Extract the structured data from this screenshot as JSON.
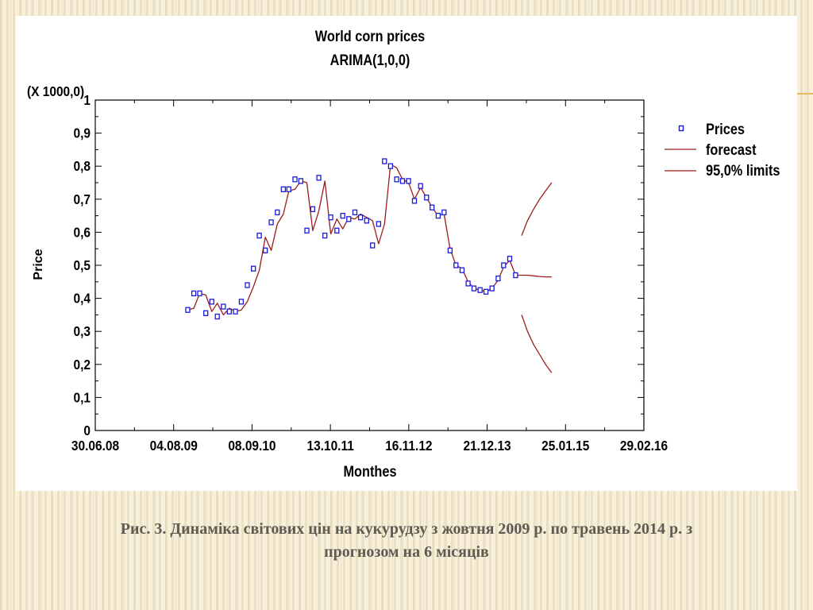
{
  "caption": {
    "line1": "Рис. 3. Динаміка світових цін на кукурудзу з жовтня 2009 р. по травень 2014 р.  з",
    "line2": "прогнозом на 6 місяців"
  },
  "chart_data": {
    "type": "line",
    "title": "World corn prices",
    "subtitle": "ARIMA(1,0,0)",
    "y_multiplier": "(X 1000,0)",
    "xlabel": "Monthes",
    "ylabel": "Price",
    "xlim": [
      "2008-06-30",
      "2016-02-29"
    ],
    "ylim": [
      0,
      1
    ],
    "x_ticks": [
      "30.06.08",
      "04.08.09",
      "08.09.10",
      "13.10.11",
      "16.11.12",
      "21.12.13",
      "25.01.15",
      "29.02.16"
    ],
    "y_ticks": [
      "0",
      "0,1",
      "0,2",
      "0,3",
      "0,4",
      "0,5",
      "0,6",
      "0,7",
      "0,8",
      "0,9",
      "1"
    ],
    "grid": false,
    "legend_position": "top-right",
    "legend": [
      "Prices",
      "forecast",
      "95,0% limits"
    ],
    "colors": {
      "prices": "#1a1adc",
      "forecast": "#9b1c1c",
      "limits": "#9b1c1c",
      "axis": "#000000"
    },
    "series": [
      {
        "name": "Prices",
        "type": "scatter",
        "x": [
          "2009-10",
          "2009-11",
          "2009-12",
          "2010-01",
          "2010-02",
          "2010-03",
          "2010-04",
          "2010-05",
          "2010-06",
          "2010-07",
          "2010-08",
          "2010-09",
          "2010-10",
          "2010-11",
          "2010-12",
          "2011-01",
          "2011-02",
          "2011-03",
          "2011-04",
          "2011-05",
          "2011-06",
          "2011-07",
          "2011-08",
          "2011-09",
          "2011-10",
          "2011-11",
          "2011-12",
          "2012-01",
          "2012-02",
          "2012-03",
          "2012-04",
          "2012-05",
          "2012-06",
          "2012-07",
          "2012-08",
          "2012-09",
          "2012-10",
          "2012-11",
          "2012-12",
          "2013-01",
          "2013-02",
          "2013-03",
          "2013-04",
          "2013-05",
          "2013-06",
          "2013-07",
          "2013-08",
          "2013-09",
          "2013-10",
          "2013-11",
          "2013-12",
          "2014-01",
          "2014-02",
          "2014-03",
          "2014-04",
          "2014-05"
        ],
        "y": [
          0.365,
          0.415,
          0.415,
          0.355,
          0.39,
          0.345,
          0.375,
          0.36,
          0.36,
          0.39,
          0.44,
          0.49,
          0.59,
          0.545,
          0.63,
          0.66,
          0.73,
          0.73,
          0.76,
          0.755,
          0.605,
          0.67,
          0.765,
          0.59,
          0.645,
          0.605,
          0.65,
          0.64,
          0.66,
          0.645,
          0.635,
          0.56,
          0.625,
          0.815,
          0.8,
          0.76,
          0.755,
          0.755,
          0.695,
          0.74,
          0.705,
          0.675,
          0.65,
          0.66,
          0.545,
          0.5,
          0.485,
          0.445,
          0.43,
          0.425,
          0.42,
          0.43,
          0.46,
          0.5,
          0.52,
          0.47
        ]
      },
      {
        "name": "forecast",
        "type": "line",
        "x": [
          "2009-10",
          "2009-11",
          "2009-12",
          "2010-01",
          "2010-02",
          "2010-03",
          "2010-04",
          "2010-05",
          "2010-06",
          "2010-07",
          "2010-08",
          "2010-09",
          "2010-10",
          "2010-11",
          "2010-12",
          "2011-01",
          "2011-02",
          "2011-03",
          "2011-04",
          "2011-05",
          "2011-06",
          "2011-07",
          "2011-08",
          "2011-09",
          "2011-10",
          "2011-11",
          "2011-12",
          "2012-01",
          "2012-02",
          "2012-03",
          "2012-04",
          "2012-05",
          "2012-06",
          "2012-07",
          "2012-08",
          "2012-09",
          "2012-10",
          "2012-11",
          "2012-12",
          "2013-01",
          "2013-02",
          "2013-03",
          "2013-04",
          "2013-05",
          "2013-06",
          "2013-07",
          "2013-08",
          "2013-09",
          "2013-10",
          "2013-11",
          "2013-12",
          "2014-01",
          "2014-02",
          "2014-03",
          "2014-04",
          "2014-05",
          "2014-06",
          "2014-07",
          "2014-08",
          "2014-09",
          "2014-10",
          "2014-11"
        ],
        "y": [
          0.365,
          0.37,
          0.415,
          0.41,
          0.36,
          0.385,
          0.35,
          0.37,
          0.36,
          0.365,
          0.39,
          0.435,
          0.485,
          0.585,
          0.545,
          0.625,
          0.655,
          0.725,
          0.73,
          0.755,
          0.75,
          0.605,
          0.665,
          0.755,
          0.595,
          0.64,
          0.61,
          0.645,
          0.64,
          0.655,
          0.645,
          0.635,
          0.565,
          0.625,
          0.805,
          0.795,
          0.76,
          0.75,
          0.7,
          0.735,
          0.705,
          0.675,
          0.65,
          0.655,
          0.55,
          0.5,
          0.49,
          0.45,
          0.43,
          0.425,
          0.42,
          0.43,
          0.455,
          0.495,
          0.515,
          0.47,
          0.47,
          0.47,
          0.468,
          0.466,
          0.465,
          0.465
        ]
      },
      {
        "name": "95,0% limits (upper)",
        "type": "line",
        "x": [
          "2014-06",
          "2014-07",
          "2014-08",
          "2014-09",
          "2014-10",
          "2014-11"
        ],
        "y": [
          0.59,
          0.635,
          0.67,
          0.7,
          0.725,
          0.75
        ]
      },
      {
        "name": "95,0% limits (lower)",
        "type": "line",
        "x": [
          "2014-06",
          "2014-07",
          "2014-08",
          "2014-09",
          "2014-10",
          "2014-11"
        ],
        "y": [
          0.35,
          0.3,
          0.26,
          0.23,
          0.2,
          0.175
        ]
      }
    ]
  }
}
